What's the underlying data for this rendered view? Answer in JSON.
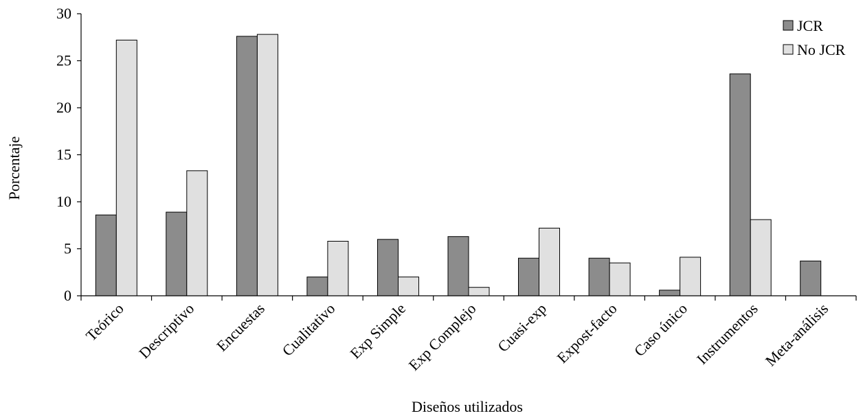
{
  "chart_data": {
    "type": "bar",
    "title": "",
    "xlabel": "Diseños utilizados",
    "ylabel": "Porcentaje",
    "ylim": [
      0,
      30
    ],
    "yticks": [
      0,
      5,
      10,
      15,
      20,
      25,
      30
    ],
    "grid": false,
    "legend_position": "top-right",
    "categories": [
      "Teórico",
      "Descriptivo",
      "Encuestas",
      "Cualitativo",
      "Exp Simple",
      "Exp Complejo",
      "Cuasi-exp",
      "Expost-facto",
      "Caso único",
      "Instrumentos",
      "Meta-análisis"
    ],
    "series": [
      {
        "name": "JCR",
        "color": "#8c8c8c",
        "values": [
          8.6,
          8.9,
          27.6,
          2.0,
          6.0,
          6.3,
          4.0,
          4.0,
          0.6,
          23.6,
          3.7
        ]
      },
      {
        "name": "No JCR",
        "color": "#e0e0e0",
        "values": [
          27.2,
          13.3,
          27.8,
          5.8,
          2.0,
          0.9,
          7.2,
          3.5,
          4.1,
          8.1,
          0.0
        ]
      }
    ]
  }
}
